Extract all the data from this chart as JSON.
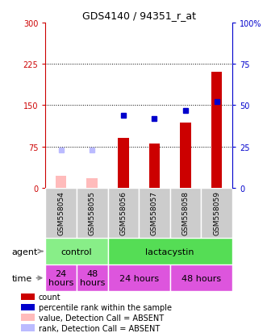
{
  "title": "GDS4140 / 94351_r_at",
  "samples": [
    "GSM558054",
    "GSM558055",
    "GSM558056",
    "GSM558057",
    "GSM558058",
    "GSM558059"
  ],
  "bar_values_present": [
    null,
    null,
    90,
    80,
    118,
    210
  ],
  "bar_values_absent": [
    22,
    18,
    null,
    null,
    null,
    null
  ],
  "rank_present": [
    null,
    null,
    44,
    42,
    47,
    52
  ],
  "rank_absent": [
    23,
    23,
    null,
    null,
    null,
    null
  ],
  "ylim_left": [
    0,
    300
  ],
  "ylim_right": [
    0,
    100
  ],
  "yticks_left": [
    0,
    75,
    150,
    225,
    300
  ],
  "yticks_right": [
    0,
    25,
    50,
    75,
    100
  ],
  "ytick_labels_left": [
    "0",
    "75",
    "150",
    "225",
    "300"
  ],
  "ytick_labels_right": [
    "0",
    "25",
    "50",
    "75",
    "100%"
  ],
  "left_axis_color": "#cc0000",
  "right_axis_color": "#0000cc",
  "agent_row": [
    {
      "label": "control",
      "color": "#88ee88",
      "span": [
        0,
        2
      ]
    },
    {
      "label": "lactacystin",
      "color": "#55dd55",
      "span": [
        2,
        6
      ]
    }
  ],
  "time_row": [
    {
      "label": "24\nhours",
      "color": "#dd55dd",
      "span": [
        0,
        1
      ]
    },
    {
      "label": "48\nhours",
      "color": "#dd55dd",
      "span": [
        1,
        2
      ]
    },
    {
      "label": "24 hours",
      "color": "#dd55dd",
      "span": [
        2,
        4
      ]
    },
    {
      "label": "48 hours",
      "color": "#dd55dd",
      "span": [
        4,
        6
      ]
    }
  ],
  "legend_items": [
    {
      "color": "#cc0000",
      "label": "count"
    },
    {
      "color": "#0000cc",
      "label": "percentile rank within the sample"
    },
    {
      "color": "#ffbbbb",
      "label": "value, Detection Call = ABSENT"
    },
    {
      "color": "#bbbbff",
      "label": "rank, Detection Call = ABSENT"
    }
  ],
  "bar_width": 0.35,
  "absent_bar_color": "#ffbbbb",
  "absent_rank_color": "#bbbbff",
  "present_rank_color": "#0000cc",
  "background_color": "#ffffff",
  "sample_box_color": "#cccccc",
  "grid_yticks": [
    75,
    150,
    225
  ]
}
